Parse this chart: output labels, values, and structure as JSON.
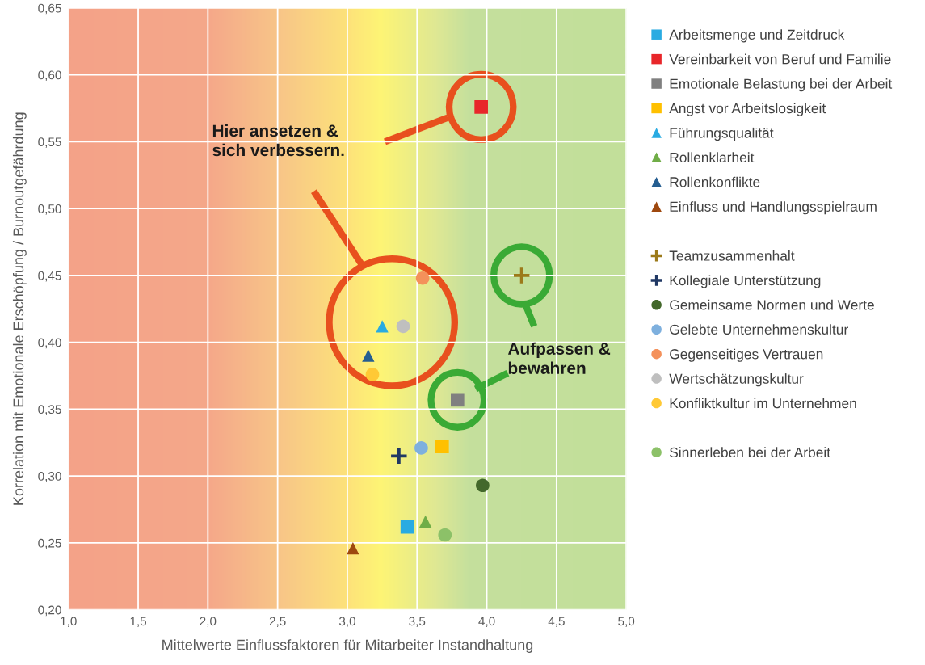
{
  "chart_data": {
    "type": "scatter",
    "xlabel": "Mittelwerte Einflussfaktoren für Mitarbeiter Instandhaltung",
    "ylabel": "Korrelation mit Emotionale Erschöpfung / Burnoutgefährdung",
    "xlim": [
      1.0,
      5.0
    ],
    "ylim": [
      0.2,
      0.65
    ],
    "xticks": [
      {
        "value": 1.0,
        "label": "1,0"
      },
      {
        "value": 1.5,
        "label": "1,5"
      },
      {
        "value": 2.0,
        "label": "2,0"
      },
      {
        "value": 2.5,
        "label": "2,5"
      },
      {
        "value": 3.0,
        "label": "3,0"
      },
      {
        "value": 3.5,
        "label": "3,5"
      },
      {
        "value": 4.0,
        "label": "4,0"
      },
      {
        "value": 4.5,
        "label": "4,5"
      },
      {
        "value": 5.0,
        "label": "5,0"
      }
    ],
    "yticks": [
      {
        "value": 0.2,
        "label": "0,20"
      },
      {
        "value": 0.25,
        "label": "0,25"
      },
      {
        "value": 0.3,
        "label": "0,30"
      },
      {
        "value": 0.35,
        "label": "0,35"
      },
      {
        "value": 0.4,
        "label": "0,40"
      },
      {
        "value": 0.45,
        "label": "0,45"
      },
      {
        "value": 0.5,
        "label": "0,50"
      },
      {
        "value": 0.55,
        "label": "0,55"
      },
      {
        "value": 0.6,
        "label": "0,60"
      },
      {
        "value": 0.65,
        "label": "0,65"
      }
    ],
    "grid": true,
    "legend": "right",
    "annotations": [
      "Hier ansetzen &\nsich verbessern.",
      "Aufpassen &\nbewahren"
    ],
    "series": [
      {
        "name": "Arbeitsmenge und Zeitdruck",
        "color": "#29abe2",
        "marker": "square",
        "x": [
          3.43
        ],
        "values": [
          0.262
        ]
      },
      {
        "name": "Vereinbarkeit von Beruf und Familie",
        "color": "#e8262a",
        "marker": "square",
        "x": [
          3.96
        ],
        "values": [
          0.576
        ]
      },
      {
        "name": "Emotionale Belastung bei der Arbeit",
        "color": "#808080",
        "marker": "square",
        "x": [
          3.79
        ],
        "values": [
          0.357
        ]
      },
      {
        "name": "Angst vor Arbeitslosigkeit",
        "color": "#ffc000",
        "marker": "square",
        "x": [
          3.68
        ],
        "values": [
          0.322
        ]
      },
      {
        "name": "Führungsqualität",
        "color": "#29abe2",
        "marker": "triangle",
        "x": [
          3.25
        ],
        "values": [
          0.412
        ]
      },
      {
        "name": "Rollenklarheit",
        "color": "#70ad47",
        "marker": "triangle",
        "x": [
          3.56
        ],
        "values": [
          0.266
        ]
      },
      {
        "name": "Rollenkonflikte",
        "color": "#255e91",
        "marker": "triangle",
        "x": [
          3.15
        ],
        "values": [
          0.39
        ]
      },
      {
        "name": "Einfluss und Handlungsspielraum",
        "color": "#9e480e",
        "marker": "triangle",
        "x": [
          3.04
        ],
        "values": [
          0.246
        ]
      },
      {
        "name": "Teamzusammenhalt",
        "color": "#9c7a1a",
        "marker": "cross",
        "x": [
          4.25
        ],
        "values": [
          0.45
        ]
      },
      {
        "name": "Kollegiale Unterstützung",
        "color": "#203864",
        "marker": "cross",
        "x": [
          3.37
        ],
        "values": [
          0.315
        ]
      },
      {
        "name": "Gemeinsame Normen und Werte",
        "color": "#43682b",
        "marker": "circle",
        "x": [
          3.97
        ],
        "values": [
          0.293
        ]
      },
      {
        "name": "Gelebte Unternehmenskultur",
        "color": "#7eb0de",
        "marker": "circle",
        "x": [
          3.53
        ],
        "values": [
          0.321
        ]
      },
      {
        "name": "Gegenseitiges Vertrauen",
        "color": "#f4915b",
        "marker": "circle",
        "x": [
          3.54
        ],
        "values": [
          0.448
        ]
      },
      {
        "name": "Wertschätzungskultur",
        "color": "#bfbfbf",
        "marker": "circle",
        "x": [
          3.4
        ],
        "values": [
          0.412
        ]
      },
      {
        "name": "Konfliktkultur im Unternehmen",
        "color": "#ffc935",
        "marker": "circle",
        "x": [
          3.18
        ],
        "values": [
          0.376
        ]
      },
      {
        "name": "Sinnerleben bei der Arbeit",
        "color": "#8cc168",
        "marker": "circle",
        "x": [
          3.7
        ],
        "values": [
          0.256
        ]
      }
    ]
  }
}
